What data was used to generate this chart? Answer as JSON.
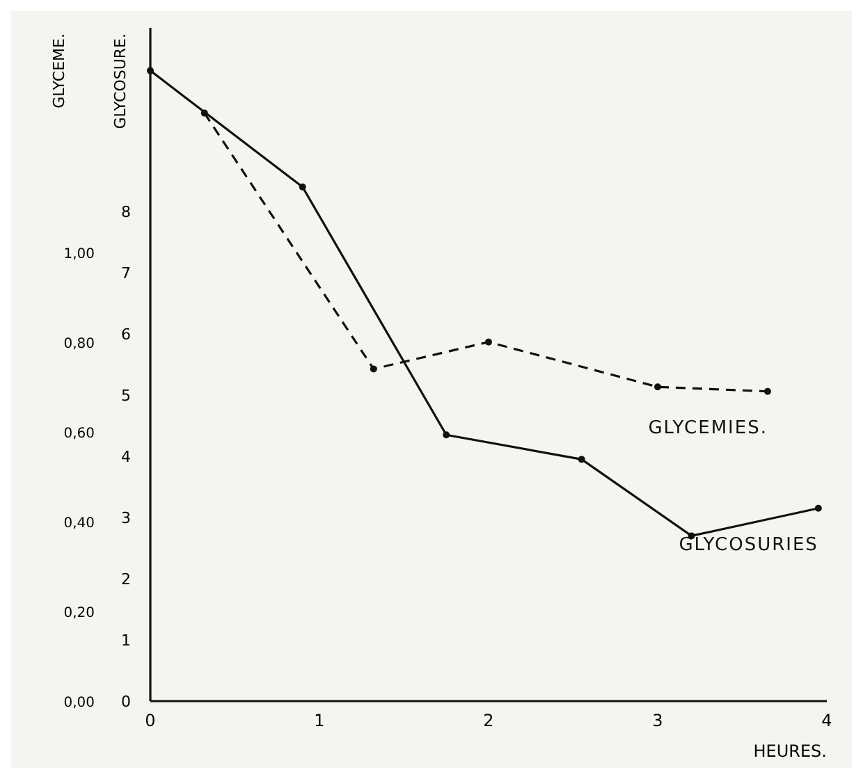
{
  "chart_data": {
    "type": "line",
    "xlabel": "HEURES.",
    "ylabel": "GLYCOSURE.",
    "y2label": "GLYCEME.",
    "xlim": [
      0,
      4
    ],
    "xticks": [
      0,
      1,
      2,
      3,
      4
    ],
    "ylim": [
      0,
      11
    ],
    "yticks": [
      0,
      1,
      2,
      3,
      4,
      5,
      6,
      7,
      8
    ],
    "y2lim": [
      0,
      1.5
    ],
    "y2ticks": [
      {
        "value": 0,
        "label": "0,00"
      },
      {
        "value": 0.2,
        "label": "0,20"
      },
      {
        "value": 0.4,
        "label": "0,40"
      },
      {
        "value": 0.6,
        "label": "0,60"
      },
      {
        "value": 0.8,
        "label": "0,80"
      },
      {
        "value": 1,
        "label": "1,00"
      }
    ],
    "marker": "circle",
    "series": [
      {
        "name": "GLYCEMIES.",
        "color": "#111111",
        "axis": "y2",
        "line_style": "dashed",
        "x": [
          0.32,
          1.32,
          2.0,
          3.0,
          3.65
        ],
        "values": [
          1.31,
          0.74,
          0.8,
          0.7,
          0.69
        ]
      },
      {
        "name": "GLYCOSURIES",
        "color": "#111111",
        "axis": "y",
        "line_style": "solid",
        "x": [
          0,
          0.9,
          1.75,
          2.55,
          3.2,
          3.95
        ],
        "values": [
          10.3,
          8.4,
          4.35,
          3.95,
          2.7,
          3.15
        ]
      }
    ]
  }
}
